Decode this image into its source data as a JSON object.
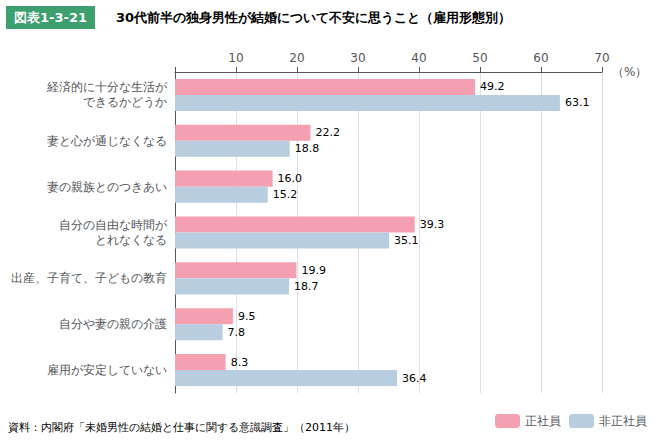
{
  "chart_data": {
    "type": "bar",
    "orientation": "horizontal",
    "title": "30代前半の独身男性が結婚について不安に思うこと（雇用形態別）",
    "annotations": [
      "図表1-3-21",
      "資料：内閣府「未婚男性の結婚と仕事に関する意識調査」（2011年）"
    ],
    "xlabel": "（%）",
    "categories": [
      "経済的に十分な生活が\nできるかどうか",
      "妻と心が通じなくなる",
      "妻の親族とのつきあい",
      "自分の自由な時間が\nとれなくなる",
      "出産、子育て、子どもの教育",
      "自分や妻の親の介護",
      "雇用が安定していない"
    ],
    "series": [
      {
        "name": "正社員",
        "color": "#F4A0B0",
        "values": [
          49.2,
          22.2,
          16.0,
          39.3,
          19.9,
          9.5,
          8.3
        ],
        "value_labels": [
          "49.2",
          "22.2",
          "16.0",
          "39.3",
          "19.9",
          "9.5",
          "8.3"
        ]
      },
      {
        "name": "非正社員",
        "color": "#B8CDE0",
        "values": [
          63.1,
          18.8,
          15.2,
          35.1,
          18.7,
          7.8,
          36.4
        ]
      }
    ],
    "xlim": [
      0,
      70
    ],
    "xticks": [
      {
        "value": 0,
        "label": null
      },
      10,
      20,
      30,
      40,
      50,
      60,
      70
    ],
    "grid": true,
    "legend": "lower right",
    "data_labels": true
  }
}
